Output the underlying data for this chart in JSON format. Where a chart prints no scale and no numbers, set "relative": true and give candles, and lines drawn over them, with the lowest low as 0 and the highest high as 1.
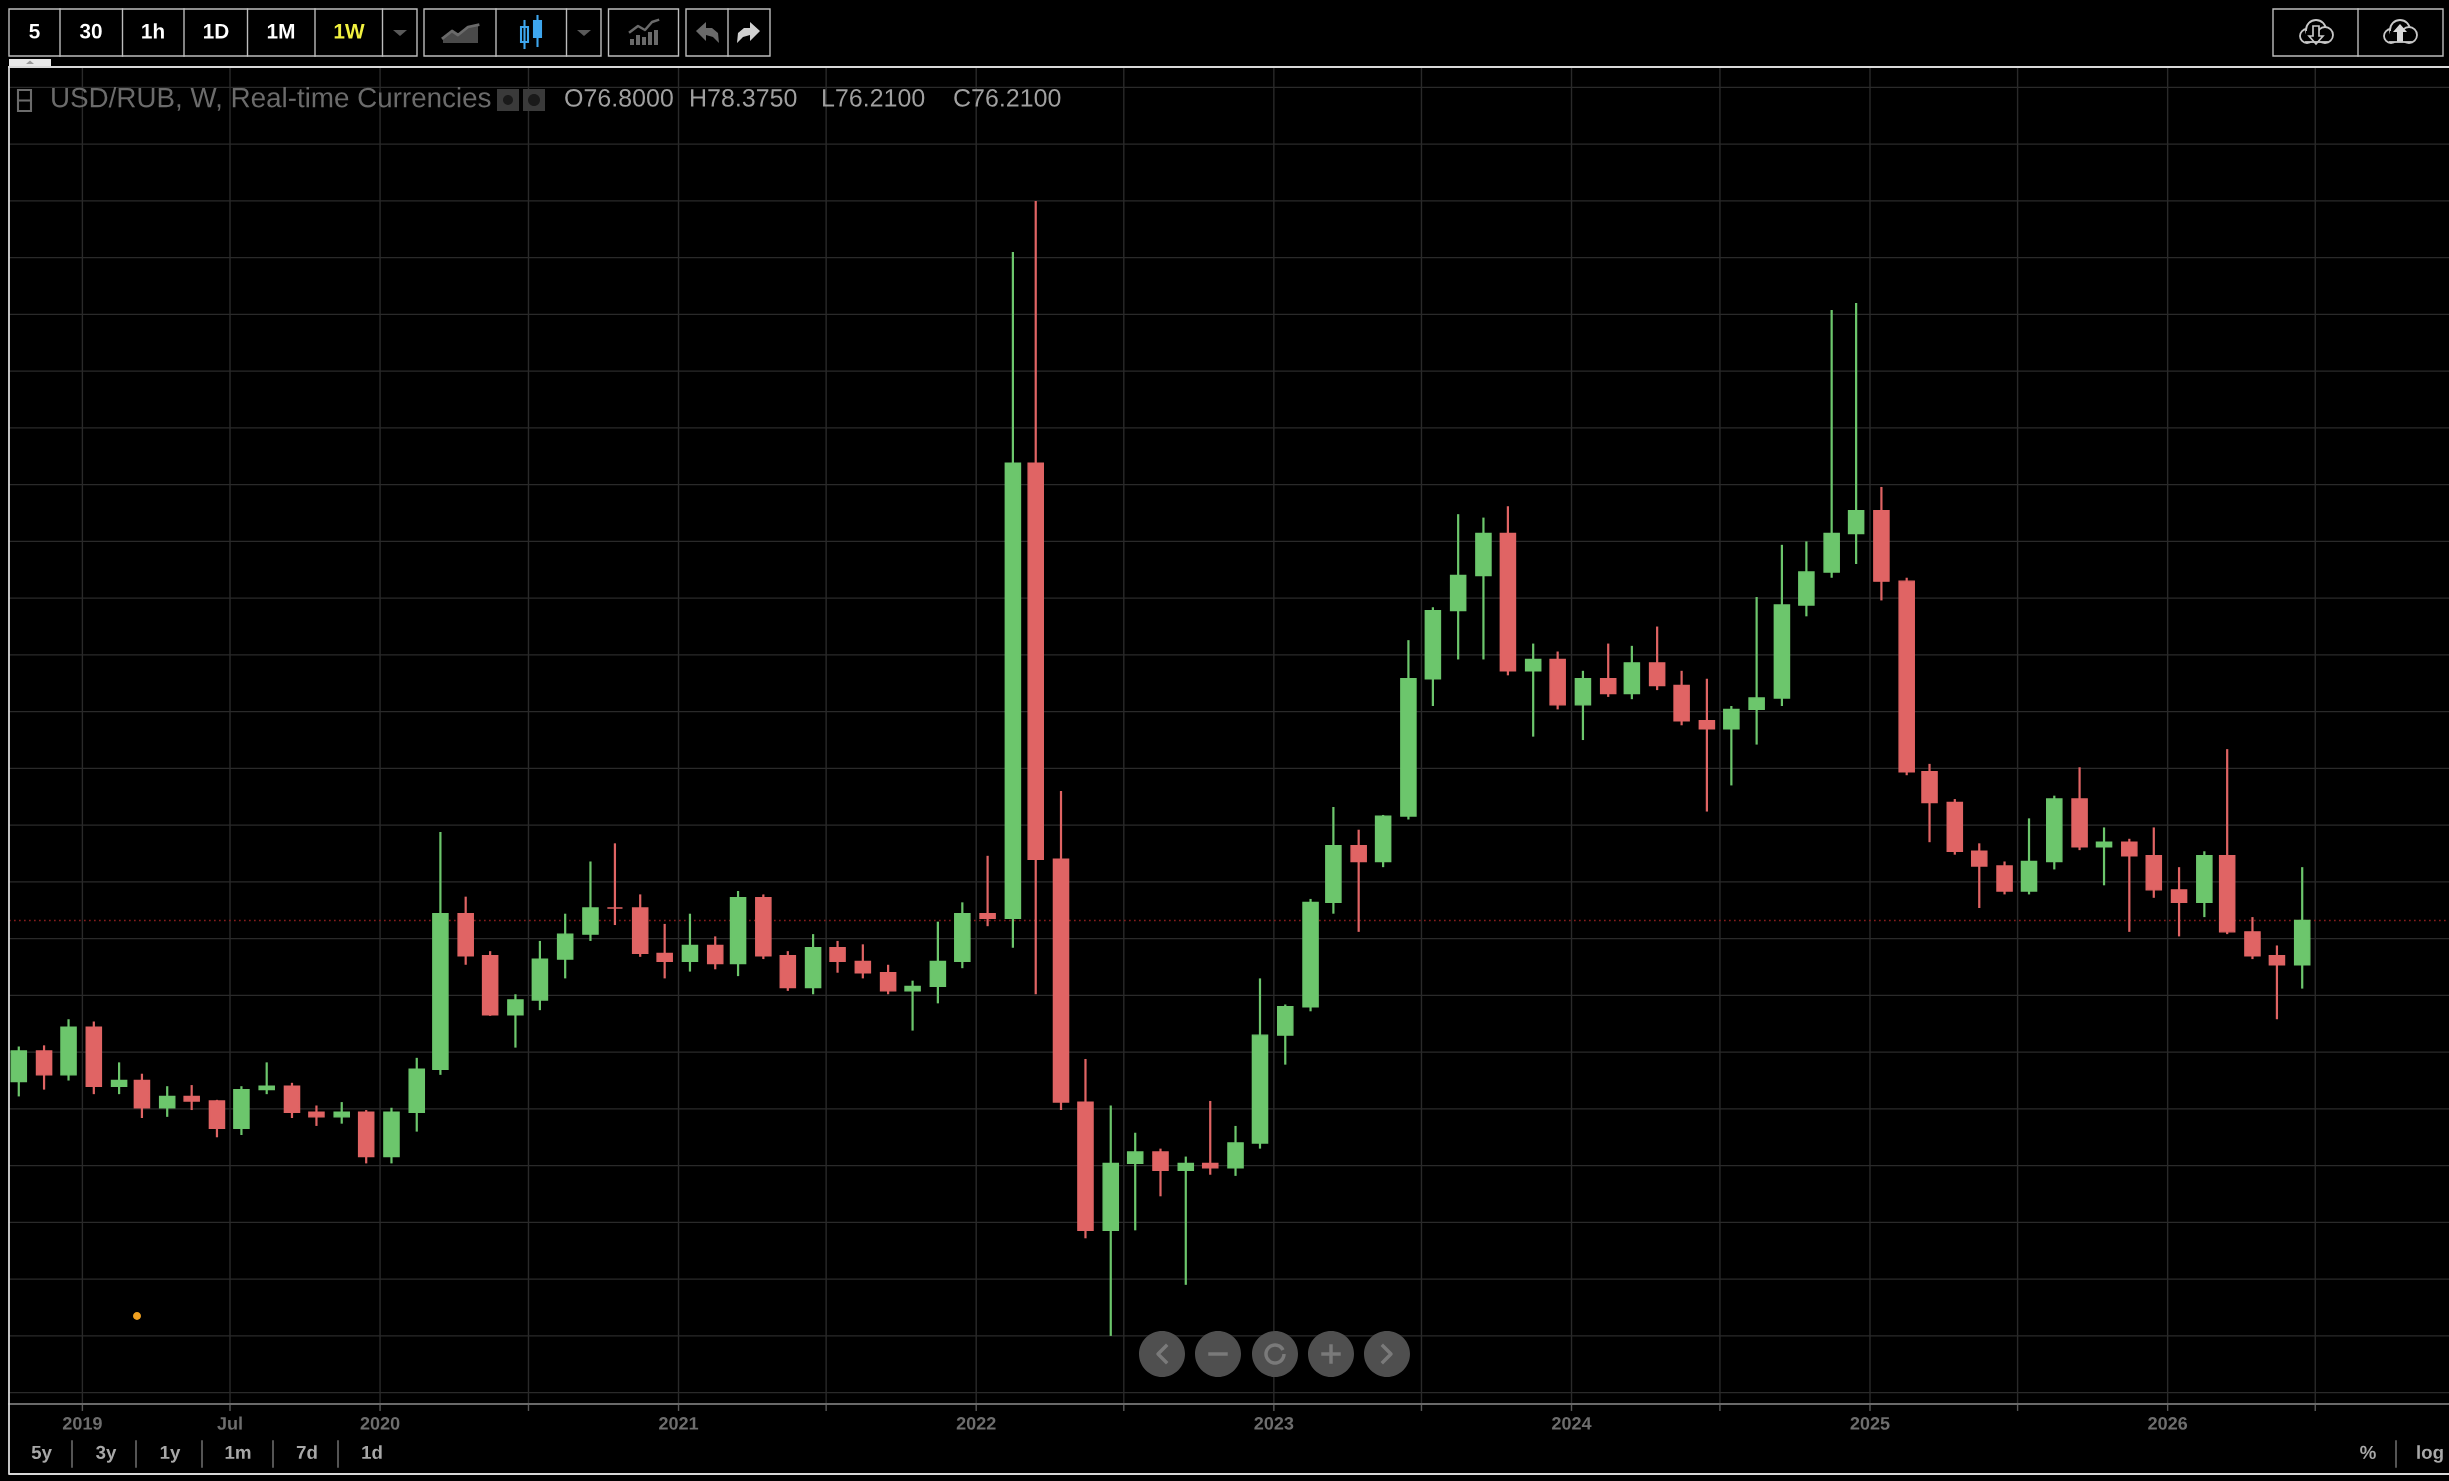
{
  "chart_data": {
    "type": "candlestick",
    "title": "USD/RUB, W, Real-time Currencies",
    "relative": true,
    "x": [
      "2018-10-15",
      "2018-11-15",
      "2018-12-15",
      "2019-01-15",
      "2019-02-15",
      "2019-03-15",
      "2019-04-15",
      "2019-05-15",
      "2019-06-15",
      "2019-07-15",
      "2019-08-15",
      "2019-09-15",
      "2019-10-15",
      "2019-11-15",
      "2019-12-15",
      "2020-01-15",
      "2020-02-15",
      "2020-03-15",
      "2020-04-15",
      "2020-05-15",
      "2020-06-15",
      "2020-07-15",
      "2020-08-15",
      "2020-09-15",
      "2020-10-15",
      "2020-11-15",
      "2020-12-15",
      "2021-01-15",
      "2021-02-15",
      "2021-03-15",
      "2021-04-15",
      "2021-05-15",
      "2021-06-15",
      "2021-07-15",
      "2021-08-15",
      "2021-09-15",
      "2021-10-15",
      "2021-11-15",
      "2021-12-15",
      "2022-01-15",
      "2022-02-15",
      "2022-03-15",
      "2022-04-15",
      "2022-05-15",
      "2022-06-15",
      "2022-07-15",
      "2022-08-15",
      "2022-09-15",
      "2022-10-15",
      "2022-11-15",
      "2022-12-15",
      "2023-01-15",
      "2023-02-15",
      "2023-03-15",
      "2023-04-15",
      "2023-05-15",
      "2023-06-15",
      "2023-07-15",
      "2023-08-15",
      "2023-09-15",
      "2023-10-15",
      "2023-11-15",
      "2023-12-15",
      "2024-01-15",
      "2024-02-15",
      "2024-03-15",
      "2024-04-15",
      "2024-05-15",
      "2024-06-15",
      "2024-07-15",
      "2024-08-15",
      "2024-09-15",
      "2024-10-15",
      "2024-11-15",
      "2024-12-15",
      "2025-01-15",
      "2025-02-15",
      "2025-03-15",
      "2025-04-15",
      "2025-05-15",
      "2025-06-15",
      "2025-07-15",
      "2025-08-15",
      "2025-09-15",
      "2025-10-15",
      "2025-11-15",
      "2025-12-15",
      "2026-01-15",
      "2026-02-15",
      "2026-03-15",
      "2026-04-15",
      "2026-05-15",
      "2026-06-15"
    ],
    "ohlc": [
      [
        0.224,
        0.255,
        0.211,
        0.251
      ],
      [
        0.251,
        0.256,
        0.217,
        0.23
      ],
      [
        0.23,
        0.279,
        0.225,
        0.272
      ],
      [
        0.272,
        0.277,
        0.213,
        0.22
      ],
      [
        0.22,
        0.241,
        0.213,
        0.225
      ],
      [
        0.225,
        0.231,
        0.192,
        0.201
      ],
      [
        0.201,
        0.22,
        0.193,
        0.211
      ],
      [
        0.211,
        0.221,
        0.199,
        0.207
      ],
      [
        0.207,
        0.208,
        0.175,
        0.183
      ],
      [
        0.183,
        0.22,
        0.177,
        0.217
      ],
      [
        0.217,
        0.241,
        0.213,
        0.22
      ],
      [
        0.22,
        0.223,
        0.192,
        0.197
      ],
      [
        0.197,
        0.203,
        0.185,
        0.193
      ],
      [
        0.193,
        0.206,
        0.187,
        0.197
      ],
      [
        0.197,
        0.199,
        0.152,
        0.158
      ],
      [
        0.158,
        0.201,
        0.152,
        0.197
      ],
      [
        0.197,
        0.245,
        0.18,
        0.235
      ],
      [
        0.235,
        0.444,
        0.23,
        0.372
      ],
      [
        0.372,
        0.387,
        0.327,
        0.335
      ],
      [
        0.335,
        0.339,
        0.282,
        0.283
      ],
      [
        0.283,
        0.301,
        0.254,
        0.296
      ],
      [
        0.296,
        0.348,
        0.287,
        0.332
      ],
      [
        0.332,
        0.372,
        0.315,
        0.354
      ],
      [
        0.354,
        0.418,
        0.348,
        0.377
      ],
      [
        0.377,
        0.434,
        0.362,
        0.377
      ],
      [
        0.377,
        0.389,
        0.334,
        0.337
      ],
      [
        0.337,
        0.363,
        0.315,
        0.33
      ],
      [
        0.33,
        0.372,
        0.321,
        0.344
      ],
      [
        0.344,
        0.352,
        0.323,
        0.328
      ],
      [
        0.328,
        0.392,
        0.317,
        0.386
      ],
      [
        0.386,
        0.389,
        0.332,
        0.335
      ],
      [
        0.335,
        0.339,
        0.304,
        0.307
      ],
      [
        0.307,
        0.354,
        0.301,
        0.342
      ],
      [
        0.342,
        0.348,
        0.32,
        0.33
      ],
      [
        0.33,
        0.345,
        0.315,
        0.32
      ],
      [
        0.32,
        0.327,
        0.301,
        0.304
      ],
      [
        0.304,
        0.313,
        0.269,
        0.308
      ],
      [
        0.308,
        0.365,
        0.293,
        0.33
      ],
      [
        0.33,
        0.382,
        0.324,
        0.372
      ],
      [
        0.372,
        0.423,
        0.361,
        0.368
      ],
      [
        0.368,
        0.955,
        0.342,
        0.769
      ],
      [
        0.769,
        1,
        0.301,
        0.42
      ],
      [
        0.42,
        0.48,
        0.199,
        0.206
      ],
      [
        0.206,
        0.244,
        0.086,
        0.093
      ],
      [
        0.093,
        0.203,
        0,
        0.152
      ],
      [
        0.152,
        0.179,
        0.093,
        0.162
      ],
      [
        0.162,
        0.165,
        0.123,
        0.146
      ],
      [
        0.146,
        0.158,
        0.045,
        0.152
      ],
      [
        0.152,
        0.207,
        0.142,
        0.148
      ],
      [
        0.148,
        0.185,
        0.141,
        0.17
      ],
      [
        0.17,
        0.315,
        0.165,
        0.265
      ],
      [
        0.265,
        0.292,
        0.239,
        0.29
      ],
      [
        0.29,
        0.385,
        0.286,
        0.382
      ],
      [
        0.382,
        0.466,
        0.372,
        0.432
      ],
      [
        0.432,
        0.446,
        0.356,
        0.418
      ],
      [
        0.418,
        0.459,
        0.413,
        0.458
      ],
      [
        0.458,
        0.613,
        0.455,
        0.579
      ],
      [
        0.579,
        0.642,
        0.555,
        0.639
      ],
      [
        0.639,
        0.724,
        0.596,
        0.67
      ],
      [
        0.67,
        0.721,
        0.596,
        0.707
      ],
      [
        0.707,
        0.731,
        0.582,
        0.586
      ],
      [
        0.586,
        0.61,
        0.528,
        0.596
      ],
      [
        0.596,
        0.603,
        0.552,
        0.556
      ],
      [
        0.556,
        0.586,
        0.525,
        0.579
      ],
      [
        0.579,
        0.61,
        0.563,
        0.566
      ],
      [
        0.566,
        0.608,
        0.561,
        0.593
      ],
      [
        0.593,
        0.625,
        0.569,
        0.573
      ],
      [
        0.573,
        0.586,
        0.538,
        0.542
      ],
      [
        0.542,
        0.579,
        0.462,
        0.535
      ],
      [
        0.535,
        0.555,
        0.485,
        0.552
      ],
      [
        0.552,
        0.651,
        0.521,
        0.562
      ],
      [
        0.562,
        0.697,
        0.555,
        0.644
      ],
      [
        0.644,
        0.7,
        0.634,
        0.673
      ],
      [
        0.673,
        0.904,
        0.668,
        0.707
      ],
      [
        0.707,
        0.91,
        0.68,
        0.727
      ],
      [
        0.727,
        0.748,
        0.648,
        0.665
      ],
      [
        0.665,
        0.668,
        0.494,
        0.497
      ],
      [
        0.497,
        0.504,
        0.435,
        0.47
      ],
      [
        0.47,
        0.473,
        0.424,
        0.427
      ],
      [
        0.427,
        0.434,
        0.377,
        0.414
      ],
      [
        0.414,
        0.418,
        0.389,
        0.392
      ],
      [
        0.392,
        0.456,
        0.389,
        0.418
      ],
      [
        0.418,
        0.476,
        0.411,
        0.473
      ],
      [
        0.473,
        0.501,
        0.428,
        0.431
      ],
      [
        0.431,
        0.448,
        0.397,
        0.435
      ],
      [
        0.435,
        0.438,
        0.356,
        0.423
      ],
      [
        0.423,
        0.448,
        0.386,
        0.393
      ],
      [
        0.393,
        0.413,
        0.352,
        0.382
      ],
      [
        0.382,
        0.427,
        0.369,
        0.423
      ],
      [
        0.423,
        0.517,
        0.354,
        0.356
      ],
      [
        0.356,
        0.369,
        0.332,
        0.335
      ],
      [
        0.335,
        0.344,
        0.279,
        0.327
      ],
      [
        0.327,
        0.413,
        0.306,
        0.366
      ]
    ],
    "colors": [
      "#6cc66c",
      "#e06464",
      "#6cc66c",
      "#e06464",
      "#6cc66c",
      "#e06464",
      "#6cc66c",
      "#e06464",
      "#e06464",
      "#6cc66c",
      "#6cc66c",
      "#e06464",
      "#e06464",
      "#6cc66c",
      "#e06464",
      "#6cc66c",
      "#6cc66c",
      "#6cc66c",
      "#e06464",
      "#e06464",
      "#6cc66c",
      "#6cc66c",
      "#6cc66c",
      "#6cc66c",
      "#e06464",
      "#e06464",
      "#e06464",
      "#6cc66c",
      "#e06464",
      "#6cc66c",
      "#e06464",
      "#e06464",
      "#6cc66c",
      "#e06464",
      "#e06464",
      "#e06464",
      "#6cc66c",
      "#6cc66c",
      "#6cc66c",
      "#e06464",
      "#6cc66c",
      "#e06464",
      "#e06464",
      "#e06464",
      "#6cc66c",
      "#6cc66c",
      "#e06464",
      "#6cc66c",
      "#e06464",
      "#6cc66c",
      "#6cc66c",
      "#6cc66c",
      "#6cc66c",
      "#6cc66c",
      "#e06464",
      "#6cc66c",
      "#6cc66c",
      "#6cc66c",
      "#6cc66c",
      "#6cc66c",
      "#e06464",
      "#6cc66c",
      "#e06464",
      "#6cc66c",
      "#e06464",
      "#6cc66c",
      "#e06464",
      "#e06464",
      "#e06464",
      "#6cc66c",
      "#6cc66c",
      "#6cc66c",
      "#6cc66c",
      "#6cc66c",
      "#6cc66c",
      "#e06464",
      "#e06464",
      "#e06464",
      "#e06464",
      "#e06464",
      "#e06464",
      "#6cc66c",
      "#6cc66c",
      "#e06464",
      "#6cc66c",
      "#e06464",
      "#e06464",
      "#e06464",
      "#6cc66c",
      "#e06464",
      "#e06464",
      "#e06464",
      "#6cc66c"
    ],
    "xlim": [
      "2018-10-03",
      "2026-12-12"
    ],
    "xticks": [
      {
        "value": "2019-01-01",
        "label": "2019"
      },
      {
        "value": "2019-07-01",
        "label": "Jul"
      },
      {
        "value": "2020-01-01",
        "label": "2020"
      },
      {
        "value": "2020-07-01",
        "label": null
      },
      {
        "value": "2021-01-01",
        "label": "2021"
      },
      {
        "value": "2021-07-01",
        "label": null
      },
      {
        "value": "2022-01-01",
        "label": "2022"
      },
      {
        "value": "2022-07-01",
        "label": null
      },
      {
        "value": "2023-01-01",
        "label": "2023"
      },
      {
        "value": "2023-07-01",
        "label": null
      },
      {
        "value": "2024-01-01",
        "label": "2024"
      },
      {
        "value": "2024-07-01",
        "label": null
      },
      {
        "value": "2025-01-01",
        "label": "2025"
      },
      {
        "value": "2025-07-01",
        "label": null
      },
      {
        "value": "2026-01-01",
        "label": "2026"
      },
      {
        "value": "2026-07-01",
        "label": null
      }
    ],
    "tick_labels": "x",
    "grid": true,
    "ref_lines": [
      {
        "axis": "y",
        "value": 0.366,
        "color": "#8a1c1c",
        "line_style": "dotted"
      }
    ],
    "annotations": [
      "O76.8000",
      "H78.3750",
      "L76.2100",
      "C76.2100",
      "5",
      "30",
      "1h",
      "1D",
      "1M",
      "1W",
      "5y",
      "3y",
      "1y",
      "1m",
      "7d",
      "1d",
      "%",
      "log"
    ]
  }
}
